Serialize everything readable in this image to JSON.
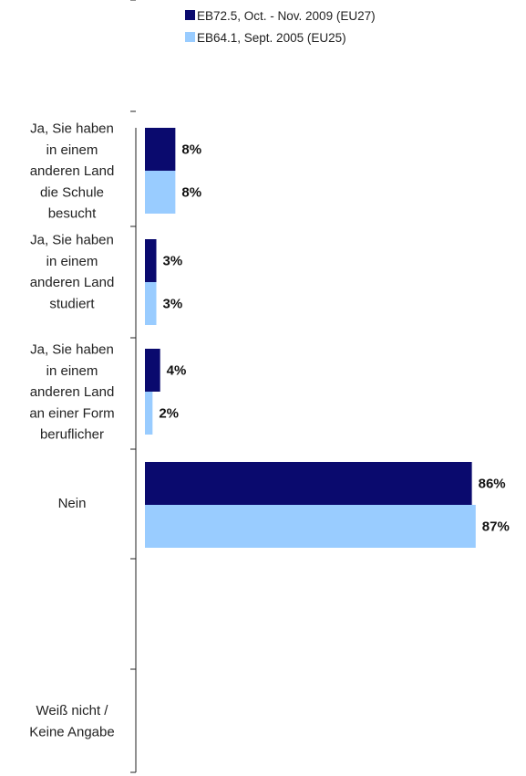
{
  "chart_data": {
    "type": "bar",
    "orientation": "horizontal",
    "categories": [
      [
        "Ja, Sie haben",
        "in einem",
        "anderen Land",
        "die Schule",
        "besucht"
      ],
      [
        "Ja, Sie haben",
        "in einem",
        "anderen Land",
        "studiert"
      ],
      [
        "Ja, Sie haben",
        "in einem",
        "anderen Land",
        "an einer Form",
        "beruflicher"
      ],
      [
        "Nein"
      ],
      [],
      [
        "Weiß nicht /",
        "Keine Angabe"
      ]
    ],
    "series": [
      {
        "name": "EB72.5, Oct. - Nov. 2009 (EU27)",
        "color": "#0a0a6e",
        "values": [
          8,
          3,
          4,
          86,
          null,
          null
        ],
        "labels": [
          "8%",
          "3%",
          "4%",
          "86%",
          "",
          ""
        ]
      },
      {
        "name": "EB64.1, Sept. 2005 (EU25)",
        "color": "#99ccff",
        "values": [
          8,
          3,
          2,
          87,
          null,
          null
        ],
        "labels": [
          "8%",
          "3%",
          "2%",
          "87%",
          "",
          ""
        ]
      }
    ],
    "xlim": [
      0,
      100
    ],
    "legend_position": "top",
    "grid": false
  }
}
